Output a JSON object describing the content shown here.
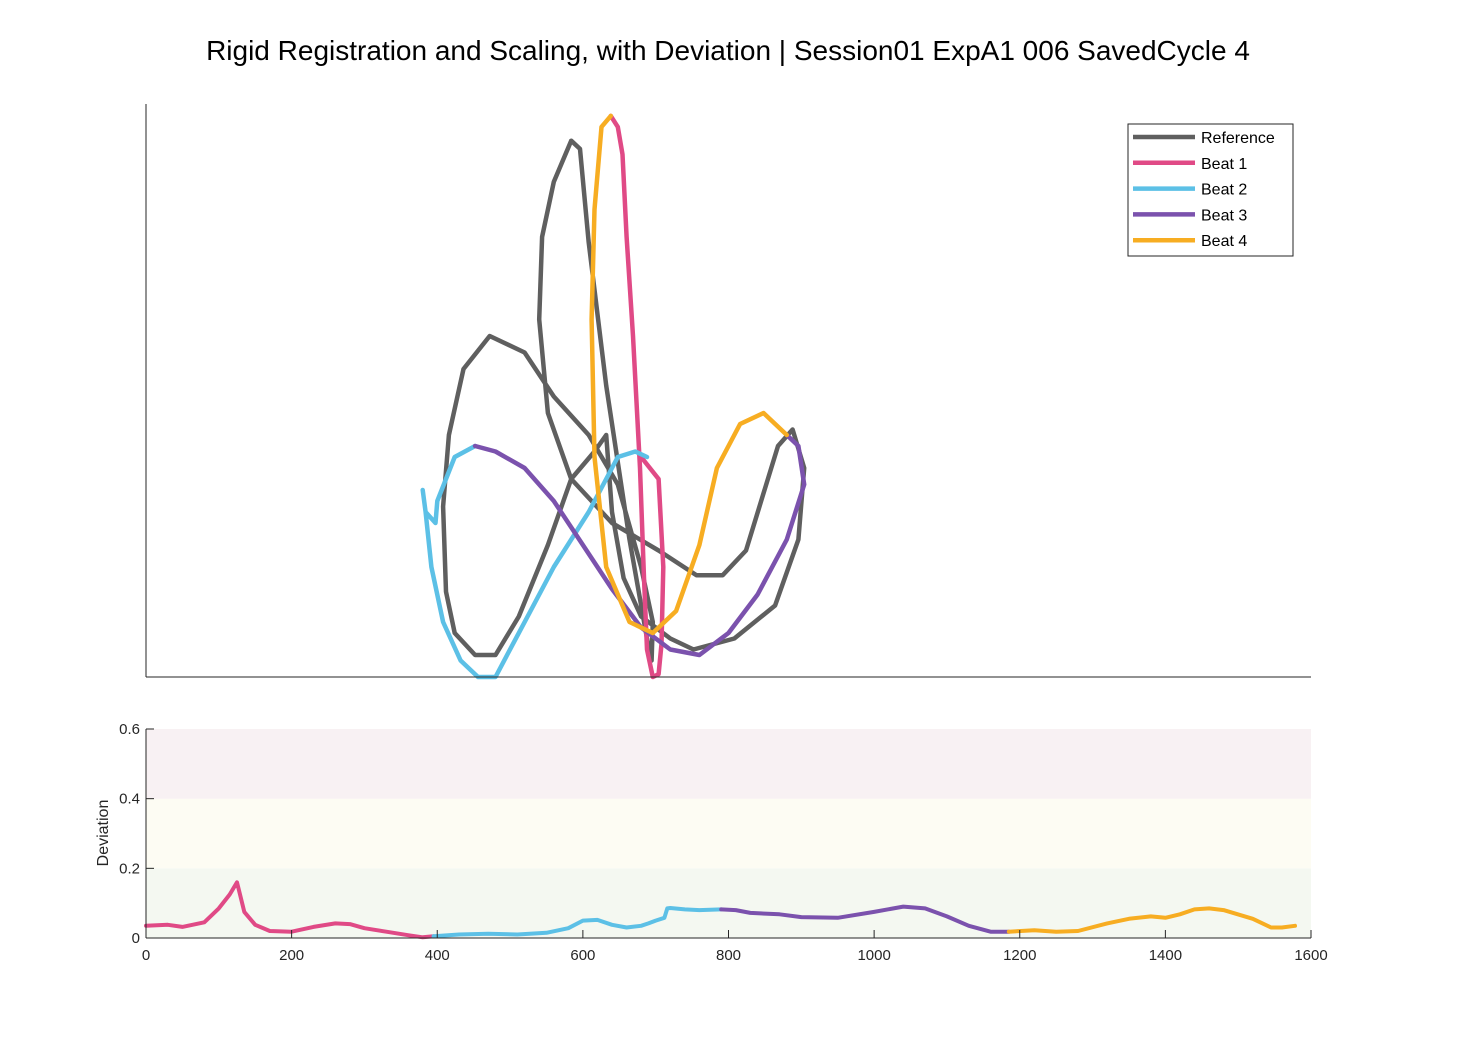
{
  "figure": {
    "title": "Rigid Registration and Scaling, with Deviation | Session01 ExpA1 006 SavedCycle 4"
  },
  "colors": {
    "reference": "#5f5f5f",
    "beat1": "#e04a86",
    "beat2": "#5cc0e6",
    "beat3": "#7b52ad",
    "beat4": "#f7ad22",
    "band_low": "#f4f8f1",
    "band_mid": "#fdfcf3",
    "band_high": "#f8f1f3"
  },
  "chart_data": [
    {
      "type": "line",
      "description_role": "registration-plot",
      "axes_visible": false,
      "legend": {
        "position": "top-right",
        "entries": [
          "Reference",
          "Beat 1",
          "Beat 2",
          "Beat 3",
          "Beat 4"
        ]
      },
      "series": [
        {
          "name": "Reference",
          "color_key": "reference",
          "closed": true,
          "points": [
            [
              0.515,
              0.155
            ],
            [
              0.51,
              0.31
            ],
            [
              0.52,
              0.44
            ],
            [
              0.545,
              0.56
            ],
            [
              0.59,
              0.62
            ],
            [
              0.65,
              0.59
            ],
            [
              0.7,
              0.51
            ],
            [
              0.76,
              0.44
            ],
            [
              0.81,
              0.35
            ],
            [
              0.85,
              0.2
            ],
            [
              0.87,
              0.1
            ],
            [
              0.868,
              0.03
            ],
            [
              0.86,
              0.07
            ],
            [
              0.83,
              0.25
            ],
            [
              0.79,
              0.53
            ],
            [
              0.76,
              0.79
            ],
            [
              0.745,
              0.96
            ],
            [
              0.73,
              0.975
            ],
            [
              0.7,
              0.9
            ],
            [
              0.68,
              0.8
            ],
            [
              0.675,
              0.65
            ],
            [
              0.69,
              0.48
            ],
            [
              0.73,
              0.36
            ],
            [
              0.8,
              0.28
            ],
            [
              0.88,
              0.23
            ],
            [
              0.945,
              0.185
            ],
            [
              0.99,
              0.185
            ],
            [
              1.03,
              0.23
            ],
            [
              1.085,
              0.42
            ],
            [
              1.11,
              0.45
            ],
            [
              1.13,
              0.38
            ],
            [
              1.12,
              0.25
            ],
            [
              1.08,
              0.13
            ],
            [
              1.01,
              0.07
            ],
            [
              0.94,
              0.05
            ],
            [
              0.9,
              0.07
            ],
            [
              0.85,
              0.11
            ],
            [
              0.82,
              0.18
            ],
            [
              0.8,
              0.3
            ],
            [
              0.79,
              0.44
            ],
            [
              0.77,
              0.41
            ],
            [
              0.73,
              0.36
            ],
            [
              0.69,
              0.24
            ],
            [
              0.64,
              0.11
            ],
            [
              0.6,
              0.04
            ],
            [
              0.565,
              0.04
            ],
            [
              0.53,
              0.08
            ],
            [
              0.515,
              0.155
            ]
          ]
        },
        {
          "name": "Beat 1",
          "color_key": "beat1",
          "closed": false,
          "points": [
            [
              0.798,
              1.02
            ],
            [
              0.81,
              1.0
            ],
            [
              0.818,
              0.95
            ],
            [
              0.825,
              0.8
            ],
            [
              0.836,
              0.62
            ],
            [
              0.848,
              0.38
            ],
            [
              0.855,
              0.18
            ],
            [
              0.86,
              0.05
            ],
            [
              0.87,
              0.0
            ],
            [
              0.88,
              0.005
            ],
            [
              0.885,
              0.06
            ],
            [
              0.888,
              0.2
            ],
            [
              0.88,
              0.36
            ],
            [
              0.85,
              0.4
            ]
          ]
        },
        {
          "name": "Beat 2",
          "color_key": "beat2",
          "closed": false,
          "points": [
            [
              0.565,
              0.42
            ],
            [
              0.53,
              0.4
            ],
            [
              0.5,
              0.32
            ],
            [
              0.497,
              0.28
            ],
            [
              0.48,
              0.3
            ],
            [
              0.475,
              0.34
            ],
            [
              0.48,
              0.3
            ],
            [
              0.49,
              0.2
            ],
            [
              0.51,
              0.1
            ],
            [
              0.54,
              0.03
            ],
            [
              0.57,
              0.0
            ],
            [
              0.6,
              0.0
            ],
            [
              0.62,
              0.04
            ],
            [
              0.66,
              0.12
            ],
            [
              0.7,
              0.2
            ],
            [
              0.76,
              0.3
            ],
            [
              0.79,
              0.36
            ],
            [
              0.81,
              0.4
            ],
            [
              0.84,
              0.41
            ],
            [
              0.86,
              0.4
            ]
          ]
        },
        {
          "name": "Beat 3",
          "color_key": "beat3",
          "closed": false,
          "points": [
            [
              0.565,
              0.42
            ],
            [
              0.6,
              0.41
            ],
            [
              0.65,
              0.38
            ],
            [
              0.7,
              0.32
            ],
            [
              0.75,
              0.24
            ],
            [
              0.8,
              0.16
            ],
            [
              0.85,
              0.09
            ],
            [
              0.9,
              0.05
            ],
            [
              0.95,
              0.04
            ],
            [
              1.0,
              0.08
            ],
            [
              1.05,
              0.15
            ],
            [
              1.1,
              0.25
            ],
            [
              1.13,
              0.35
            ],
            [
              1.12,
              0.42
            ],
            [
              1.1,
              0.44
            ]
          ]
        },
        {
          "name": "Beat 4",
          "color_key": "beat4",
          "closed": false,
          "points": [
            [
              1.1,
              0.44
            ],
            [
              1.06,
              0.48
            ],
            [
              1.02,
              0.46
            ],
            [
              0.98,
              0.38
            ],
            [
              0.95,
              0.24
            ],
            [
              0.91,
              0.12
            ],
            [
              0.87,
              0.08
            ],
            [
              0.83,
              0.1
            ],
            [
              0.79,
              0.2
            ],
            [
              0.77,
              0.4
            ],
            [
              0.765,
              0.65
            ],
            [
              0.77,
              0.85
            ],
            [
              0.782,
              1.0
            ],
            [
              0.798,
              1.02
            ]
          ]
        }
      ]
    },
    {
      "type": "line",
      "description_role": "deviation-plot",
      "ylabel": "Deviation",
      "xlabel": "",
      "xlim": [
        0,
        1600
      ],
      "ylim": [
        0,
        0.6
      ],
      "xticks": [
        "0",
        "200",
        "400",
        "600",
        "800",
        "1000",
        "1200",
        "1400",
        "1600"
      ],
      "yticks": [
        "0",
        "0.2",
        "0.4",
        "0.6"
      ],
      "bands": [
        {
          "from": 0,
          "to": 0.2,
          "color_key": "band_low"
        },
        {
          "from": 0.2,
          "to": 0.4,
          "color_key": "band_mid"
        },
        {
          "from": 0.4,
          "to": 0.6,
          "color_key": "band_high"
        }
      ],
      "series": [
        {
          "name": "Beat 1",
          "color_key": "beat1",
          "x": [
            0,
            30,
            50,
            80,
            100,
            115,
            125,
            135,
            150,
            170,
            200,
            230,
            260,
            280,
            300,
            330,
            360,
            380,
            395
          ],
          "y": [
            0.035,
            0.038,
            0.032,
            0.045,
            0.085,
            0.125,
            0.16,
            0.075,
            0.038,
            0.02,
            0.018,
            0.032,
            0.042,
            0.04,
            0.028,
            0.018,
            0.008,
            0.002,
            0.005
          ]
        },
        {
          "name": "Beat 2",
          "color_key": "beat2",
          "x": [
            395,
            430,
            470,
            510,
            550,
            580,
            600,
            620,
            640,
            660,
            680,
            690,
            700,
            712,
            716,
            720,
            740,
            760,
            790
          ],
          "y": [
            0.005,
            0.01,
            0.012,
            0.01,
            0.015,
            0.028,
            0.05,
            0.052,
            0.038,
            0.03,
            0.035,
            0.042,
            0.05,
            0.058,
            0.085,
            0.086,
            0.082,
            0.08,
            0.082
          ]
        },
        {
          "name": "Beat 3",
          "color_key": "beat3",
          "x": [
            790,
            810,
            830,
            870,
            900,
            950,
            1000,
            1040,
            1070,
            1100,
            1130,
            1160,
            1185
          ],
          "y": [
            0.082,
            0.08,
            0.072,
            0.068,
            0.06,
            0.058,
            0.075,
            0.09,
            0.085,
            0.062,
            0.035,
            0.018,
            0.018
          ]
        },
        {
          "name": "Beat 4",
          "color_key": "beat4",
          "x": [
            1185,
            1220,
            1250,
            1280,
            1320,
            1350,
            1380,
            1400,
            1420,
            1440,
            1460,
            1480,
            1520,
            1545,
            1560,
            1578
          ],
          "y": [
            0.018,
            0.022,
            0.018,
            0.02,
            0.042,
            0.055,
            0.062,
            0.058,
            0.068,
            0.082,
            0.085,
            0.08,
            0.055,
            0.03,
            0.03,
            0.035
          ]
        }
      ]
    }
  ]
}
